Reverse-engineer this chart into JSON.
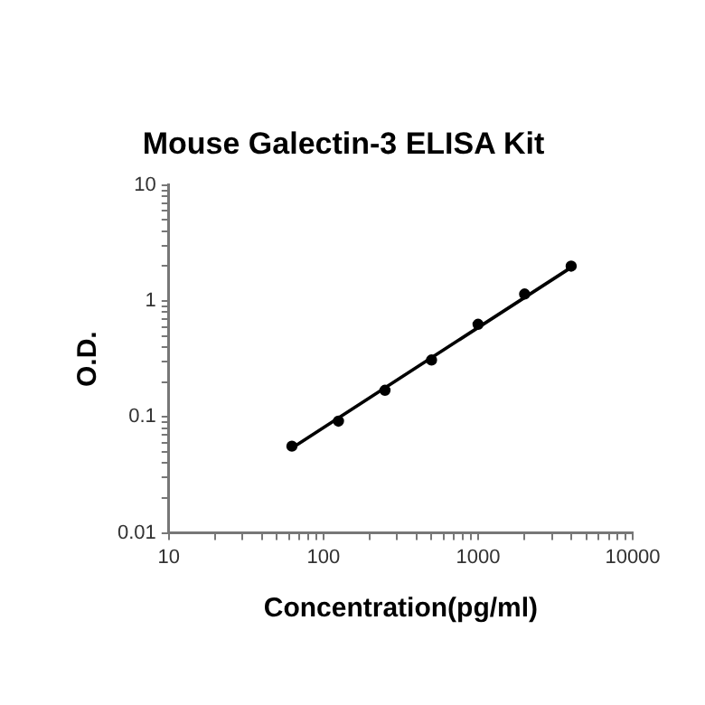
{
  "chart_data": {
    "type": "scatter",
    "title": "Mouse Galectin-3 ELISA Kit",
    "xlabel": "Concentration(pg/ml)",
    "ylabel": "O.D.",
    "log": "xy",
    "grid": false,
    "legend": false,
    "marker": "circle",
    "xlim": [
      10,
      10000
    ],
    "ylim": [
      0.01,
      10
    ],
    "xticks": [
      10,
      {
        "value": 20,
        "label": null
      },
      {
        "value": 30,
        "label": null
      },
      {
        "value": 40,
        "label": null
      },
      {
        "value": 50,
        "label": null
      },
      {
        "value": 60,
        "label": null
      },
      {
        "value": 70,
        "label": null
      },
      {
        "value": 80,
        "label": null
      },
      {
        "value": 90,
        "label": null
      },
      100,
      {
        "value": 200,
        "label": null
      },
      {
        "value": 300,
        "label": null
      },
      {
        "value": 400,
        "label": null
      },
      {
        "value": 500,
        "label": null
      },
      {
        "value": 600,
        "label": null
      },
      {
        "value": 700,
        "label": null
      },
      {
        "value": 800,
        "label": null
      },
      {
        "value": 900,
        "label": null
      },
      1000,
      {
        "value": 2000,
        "label": null
      },
      {
        "value": 3000,
        "label": null
      },
      {
        "value": 4000,
        "label": null
      },
      {
        "value": 5000,
        "label": null
      },
      {
        "value": 6000,
        "label": null
      },
      {
        "value": 7000,
        "label": null
      },
      {
        "value": 8000,
        "label": null
      },
      {
        "value": 9000,
        "label": null
      },
      10000
    ],
    "yticks": [
      0.01,
      {
        "value": 0.02,
        "label": null
      },
      {
        "value": 0.03,
        "label": null
      },
      {
        "value": 0.04,
        "label": null
      },
      {
        "value": 0.05,
        "label": null
      },
      {
        "value": 0.06,
        "label": null
      },
      {
        "value": 0.07,
        "label": null
      },
      {
        "value": 0.08,
        "label": null
      },
      {
        "value": 0.09,
        "label": null
      },
      0.1,
      {
        "value": 0.2,
        "label": null
      },
      {
        "value": 0.3,
        "label": null
      },
      {
        "value": 0.4,
        "label": null
      },
      {
        "value": 0.5,
        "label": null
      },
      {
        "value": 0.6,
        "label": null
      },
      {
        "value": 0.7,
        "label": null
      },
      {
        "value": 0.8,
        "label": null
      },
      {
        "value": 0.9,
        "label": null
      },
      1,
      {
        "value": 2,
        "label": null
      },
      {
        "value": 3,
        "label": null
      },
      {
        "value": 4,
        "label": null
      },
      {
        "value": 5,
        "label": null
      },
      {
        "value": 6,
        "label": null
      },
      {
        "value": 7,
        "label": null
      },
      {
        "value": 8,
        "label": null
      },
      {
        "value": 9,
        "label": null
      },
      10
    ],
    "series": [
      {
        "type": "scatter",
        "color": "#000000",
        "x": [
          62.5,
          125,
          250,
          500,
          1000,
          2000,
          4000
        ],
        "values": [
          0.056,
          0.092,
          0.17,
          0.31,
          0.63,
          1.15,
          2.0
        ]
      },
      {
        "type": "line",
        "color": "#000000",
        "marker": "none",
        "line_style": "solid",
        "x": [
          62.5,
          4000
        ],
        "values": [
          0.054,
          1.95
        ]
      }
    ]
  }
}
